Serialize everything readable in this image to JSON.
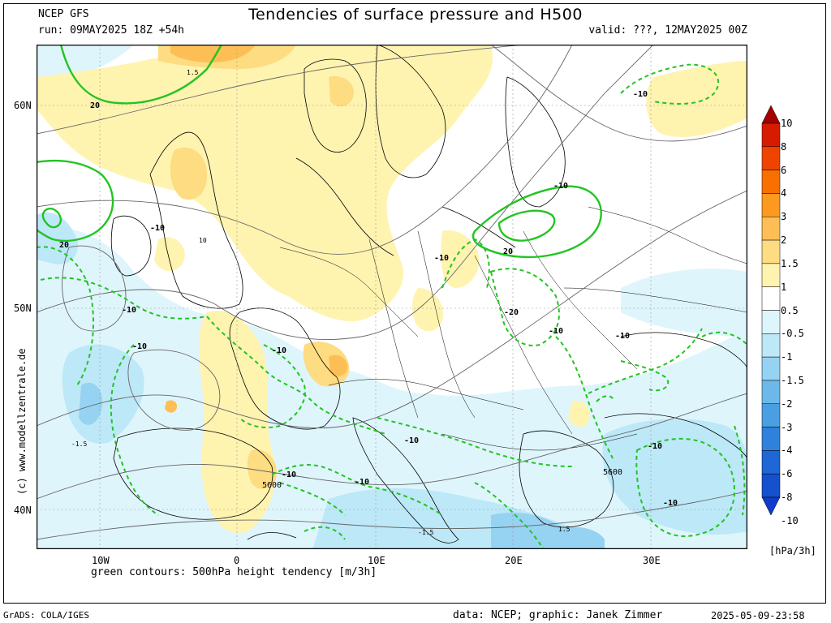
{
  "header": {
    "model": "NCEP GFS",
    "run": "run: 09MAY2025 18Z +54h",
    "title": "Tendencies of surface pressure and H500",
    "valid": "valid: ???, 12MAY2025 00Z"
  },
  "side_text": "(c)  www.modellzentrale.de",
  "axes": {
    "lat_labels": [
      "60N",
      "50N",
      "40N"
    ],
    "lon_labels": [
      "10W",
      "0",
      "10E",
      "20E",
      "30E"
    ]
  },
  "contour_labels": {
    "green_solid": [
      "20",
      "20",
      "20"
    ],
    "green_dashed": [
      "-10",
      "-10",
      "-10",
      "-10",
      "-10",
      "-10",
      "-10",
      "-10",
      "-10",
      "-10",
      "-10",
      "-10",
      "-20",
      "-10",
      "-10"
    ],
    "black_small": [
      "10",
      "1.5",
      "-1.5",
      "-1.5",
      "1.5"
    ],
    "height": [
      "5600",
      "5600"
    ]
  },
  "colorbar": {
    "levels": [
      "10",
      "8",
      "6",
      "4",
      "3",
      "2",
      "1.5",
      "1",
      "0.5",
      "-0.5",
      "-1",
      "-1.5",
      "-2",
      "-3",
      "-4",
      "-6",
      "-8",
      "-10"
    ],
    "colors": [
      "#a50000",
      "#d71b00",
      "#ef4400",
      "#f97000",
      "#fc9a20",
      "#fdbf55",
      "#fddc82",
      "#fff3b0",
      "#ffffff",
      "#dff5fc",
      "#bde8f8",
      "#96d2f2",
      "#6db8ea",
      "#4a9ee2",
      "#2f82db",
      "#1f66d6",
      "#1550ce",
      "#0f3cc8"
    ],
    "unit": "[hPa/3h]"
  },
  "footer": {
    "green_caption": "green contours: 500hPa height tendency [m/3h]",
    "left": "GrADS: COLA/IGES",
    "credit": "data: NCEP; graphic: Janek Zimmer",
    "timestamp": "2025-05-09-23:58"
  }
}
